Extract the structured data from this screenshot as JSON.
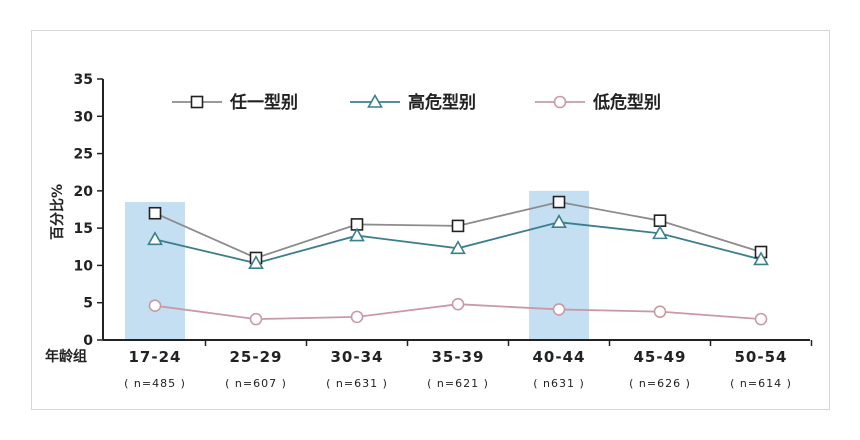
{
  "chart_data": {
    "type": "line",
    "ylabel": "百分比%",
    "xlabel": "年龄组",
    "ylim": [
      0,
      35
    ],
    "yticks": [
      0,
      5,
      10,
      15,
      20,
      25,
      30,
      35
    ],
    "categories": [
      "17-24",
      "25-29",
      "30-34",
      "35-39",
      "40-44",
      "45-49",
      "50-54"
    ],
    "category_sublabels": [
      "( n=485 )",
      "( n=607 )",
      "( n=631 )",
      "( n=621 )",
      "( n631 )",
      "( n=626 )",
      "( n=614 )"
    ],
    "highlighted_categories": [
      {
        "category": "17-24",
        "top_value": 18.5
      },
      {
        "category": "40-44",
        "top_value": 20
      }
    ],
    "legend_position": "top",
    "series": [
      {
        "name": "任一型别",
        "marker": "square",
        "color": "#8c8c8c",
        "values": [
          17,
          11,
          15.5,
          15.3,
          18.5,
          16,
          11.8
        ]
      },
      {
        "name": "高危型别",
        "marker": "triangle",
        "color": "#3b7f8c",
        "values": [
          13.5,
          10.3,
          14,
          12.3,
          15.8,
          14.3,
          10.8
        ]
      },
      {
        "name": "低危型别",
        "marker": "circle",
        "color": "#c99aa5",
        "values": [
          4.6,
          2.8,
          3.1,
          4.8,
          4.1,
          3.8,
          2.8
        ]
      }
    ],
    "colors": {
      "highlight": "#c4def2",
      "axis": "#222222",
      "marker_fill": "#ffffff"
    }
  }
}
